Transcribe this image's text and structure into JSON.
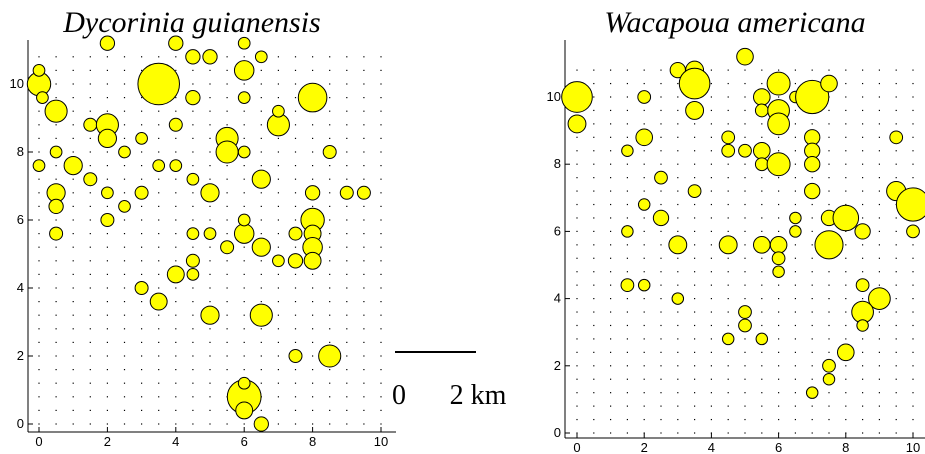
{
  "chart_data": [
    {
      "type": "scatter",
      "title": "Dycorinia guianensis",
      "xlabel": "",
      "ylabel": "",
      "xlim": [
        -0.3,
        10.7
      ],
      "ylim": [
        -0.2,
        11.5
      ],
      "xticks": [
        0,
        2,
        4,
        6,
        8,
        10
      ],
      "yticks": [
        0,
        2,
        4,
        6,
        8,
        10
      ],
      "grid": false,
      "marker_color": "#ffff00",
      "marker_edge": "#000000",
      "points": [
        {
          "x": 0,
          "y": 10,
          "s": 0.9
        },
        {
          "x": 0.5,
          "y": 9.2,
          "s": 0.85
        },
        {
          "x": 0.5,
          "y": 6.8,
          "s": 0.7
        },
        {
          "x": 0.5,
          "y": 6.4,
          "s": 0.55
        },
        {
          "x": 0.5,
          "y": 5.6,
          "s": 0.5
        },
        {
          "x": 0,
          "y": 7.6,
          "s": 0.45
        },
        {
          "x": 0.5,
          "y": 8,
          "s": 0.45
        },
        {
          "x": 1,
          "y": 7.6,
          "s": 0.7
        },
        {
          "x": 1.5,
          "y": 8.8,
          "s": 0.5
        },
        {
          "x": 2,
          "y": 8.8,
          "s": 0.85
        },
        {
          "x": 2,
          "y": 8.4,
          "s": 0.7
        },
        {
          "x": 2,
          "y": 6,
          "s": 0.5
        },
        {
          "x": 2,
          "y": 6.8,
          "s": 0.45
        },
        {
          "x": 2,
          "y": 11.2,
          "s": 0.55
        },
        {
          "x": 2.5,
          "y": 6.4,
          "s": 0.45
        },
        {
          "x": 3.5,
          "y": 10,
          "s": 1.6
        },
        {
          "x": 4,
          "y": 11.2,
          "s": 0.55
        },
        {
          "x": 4,
          "y": 8.8,
          "s": 0.5
        },
        {
          "x": 4.5,
          "y": 9.6,
          "s": 0.55
        },
        {
          "x": 4.5,
          "y": 10.8,
          "s": 0.55
        },
        {
          "x": 5,
          "y": 10.8,
          "s": 0.55
        },
        {
          "x": 5,
          "y": 6.8,
          "s": 0.7
        },
        {
          "x": 5.5,
          "y": 8.4,
          "s": 0.85
        },
        {
          "x": 5.5,
          "y": 8,
          "s": 0.85
        },
        {
          "x": 6,
          "y": 10.4,
          "s": 0.75
        },
        {
          "x": 6,
          "y": 9.6,
          "s": 0.45
        },
        {
          "x": 6,
          "y": 5.6,
          "s": 0.75
        },
        {
          "x": 6.5,
          "y": 7.2,
          "s": 0.7
        },
        {
          "x": 6.5,
          "y": 5.2,
          "s": 0.7
        },
        {
          "x": 7,
          "y": 8.8,
          "s": 0.85
        },
        {
          "x": 7,
          "y": 9.2,
          "s": 0.45
        },
        {
          "x": 8,
          "y": 9.6,
          "s": 1.1
        },
        {
          "x": 8,
          "y": 6,
          "s": 0.9
        },
        {
          "x": 8,
          "y": 5.6,
          "s": 0.65
        },
        {
          "x": 8,
          "y": 5.2,
          "s": 0.75
        },
        {
          "x": 8,
          "y": 4.8,
          "s": 0.65
        },
        {
          "x": 8,
          "y": 6.8,
          "s": 0.55
        },
        {
          "x": 9,
          "y": 6.8,
          "s": 0.5
        },
        {
          "x": 9.5,
          "y": 6.8,
          "s": 0.5
        },
        {
          "x": 7.5,
          "y": 5.6,
          "s": 0.5
        },
        {
          "x": 7.5,
          "y": 4.8,
          "s": 0.55
        },
        {
          "x": 7,
          "y": 4.8,
          "s": 0.45
        },
        {
          "x": 4,
          "y": 4.4,
          "s": 0.65
        },
        {
          "x": 3.5,
          "y": 3.6,
          "s": 0.65
        },
        {
          "x": 3,
          "y": 4,
          "s": 0.5
        },
        {
          "x": 4.5,
          "y": 4.8,
          "s": 0.5
        },
        {
          "x": 4.5,
          "y": 4.4,
          "s": 0.45
        },
        {
          "x": 5,
          "y": 3.2,
          "s": 0.7
        },
        {
          "x": 4.5,
          "y": 5.6,
          "s": 0.45
        },
        {
          "x": 5,
          "y": 5.6,
          "s": 0.45
        },
        {
          "x": 6.5,
          "y": 3.2,
          "s": 0.85
        },
        {
          "x": 7.5,
          "y": 2,
          "s": 0.5
        },
        {
          "x": 8.5,
          "y": 2,
          "s": 0.85
        },
        {
          "x": 6,
          "y": 0.8,
          "s": 1.3
        },
        {
          "x": 6,
          "y": 0.4,
          "s": 0.65
        },
        {
          "x": 6.5,
          "y": 0,
          "s": 0.55
        },
        {
          "x": 6,
          "y": 1.2,
          "s": 0.45
        },
        {
          "x": 3,
          "y": 6.8,
          "s": 0.5
        },
        {
          "x": 3.5,
          "y": 7.6,
          "s": 0.45
        },
        {
          "x": 2.5,
          "y": 8,
          "s": 0.45
        },
        {
          "x": 4,
          "y": 7.6,
          "s": 0.45
        },
        {
          "x": 4.5,
          "y": 7.2,
          "s": 0.45
        },
        {
          "x": 3,
          "y": 8.4,
          "s": 0.45
        },
        {
          "x": 5.5,
          "y": 5.2,
          "s": 0.5
        },
        {
          "x": 8.5,
          "y": 8,
          "s": 0.5
        },
        {
          "x": 0,
          "y": 10.4,
          "s": 0.45
        },
        {
          "x": 0.1,
          "y": 9.6,
          "s": 0.45
        },
        {
          "x": 1.5,
          "y": 7.2,
          "s": 0.5
        },
        {
          "x": 6,
          "y": 11.2,
          "s": 0.45
        },
        {
          "x": 6,
          "y": 8,
          "s": 0.45
        },
        {
          "x": 6.5,
          "y": 10.8,
          "s": 0.45
        },
        {
          "x": 6,
          "y": 6,
          "s": 0.45
        }
      ],
      "annotations": {
        "scale_bar_left": "0",
        "scale_bar_right": "2 km"
      }
    },
    {
      "type": "scatter",
      "title": "Wacapoua americana",
      "xlabel": "",
      "ylabel": "",
      "xlim": [
        -0.3,
        10.3
      ],
      "ylim": [
        -0.1,
        11.5
      ],
      "xticks": [
        0,
        2,
        4,
        6,
        8,
        10
      ],
      "yticks": [
        0,
        2,
        4,
        6,
        8,
        10
      ],
      "grid": false,
      "marker_color": "#ffff00",
      "marker_edge": "#000000",
      "points": [
        {
          "x": 0,
          "y": 10,
          "s": 1.2
        },
        {
          "x": 0,
          "y": 9.2,
          "s": 0.7
        },
        {
          "x": 2,
          "y": 10,
          "s": 0.5
        },
        {
          "x": 2,
          "y": 8.8,
          "s": 0.65
        },
        {
          "x": 1.5,
          "y": 8.4,
          "s": 0.45
        },
        {
          "x": 3,
          "y": 10.8,
          "s": 0.6
        },
        {
          "x": 3.5,
          "y": 10.8,
          "s": 0.7
        },
        {
          "x": 3.5,
          "y": 10.4,
          "s": 1.2
        },
        {
          "x": 3.5,
          "y": 9.6,
          "s": 0.7
        },
        {
          "x": 3.5,
          "y": 7.2,
          "s": 0.5
        },
        {
          "x": 5,
          "y": 11.2,
          "s": 0.65
        },
        {
          "x": 4.5,
          "y": 8.8,
          "s": 0.5
        },
        {
          "x": 4.5,
          "y": 8.4,
          "s": 0.5
        },
        {
          "x": 5,
          "y": 8.4,
          "s": 0.5
        },
        {
          "x": 5.5,
          "y": 8.4,
          "s": 0.65
        },
        {
          "x": 5.5,
          "y": 8,
          "s": 0.5
        },
        {
          "x": 5.5,
          "y": 10,
          "s": 0.65
        },
        {
          "x": 5.5,
          "y": 9.6,
          "s": 0.5
        },
        {
          "x": 6,
          "y": 10.4,
          "s": 0.9
        },
        {
          "x": 6,
          "y": 9.6,
          "s": 0.85
        },
        {
          "x": 6,
          "y": 9.2,
          "s": 0.85
        },
        {
          "x": 6,
          "y": 8,
          "s": 0.9
        },
        {
          "x": 6.5,
          "y": 10,
          "s": 0.45
        },
        {
          "x": 7,
          "y": 10,
          "s": 1.3
        },
        {
          "x": 7.5,
          "y": 10.4,
          "s": 0.65
        },
        {
          "x": 7,
          "y": 8.8,
          "s": 0.6
        },
        {
          "x": 7,
          "y": 8.4,
          "s": 0.6
        },
        {
          "x": 7,
          "y": 8,
          "s": 0.6
        },
        {
          "x": 7,
          "y": 7.2,
          "s": 0.6
        },
        {
          "x": 7.5,
          "y": 6.4,
          "s": 0.6
        },
        {
          "x": 7.5,
          "y": 5.6,
          "s": 1.1
        },
        {
          "x": 8,
          "y": 6.4,
          "s": 1.0
        },
        {
          "x": 8.5,
          "y": 6,
          "s": 0.6
        },
        {
          "x": 9.5,
          "y": 7.2,
          "s": 0.75
        },
        {
          "x": 10,
          "y": 6.8,
          "s": 1.3
        },
        {
          "x": 10,
          "y": 6,
          "s": 0.5
        },
        {
          "x": 9.5,
          "y": 8.8,
          "s": 0.5
        },
        {
          "x": 9,
          "y": 4,
          "s": 0.85
        },
        {
          "x": 8.5,
          "y": 3.6,
          "s": 0.85
        },
        {
          "x": 8,
          "y": 2.4,
          "s": 0.65
        },
        {
          "x": 2.5,
          "y": 7.6,
          "s": 0.5
        },
        {
          "x": 2.5,
          "y": 6.4,
          "s": 0.6
        },
        {
          "x": 3,
          "y": 5.6,
          "s": 0.7
        },
        {
          "x": 4.5,
          "y": 5.6,
          "s": 0.7
        },
        {
          "x": 5.5,
          "y": 5.6,
          "s": 0.65
        },
        {
          "x": 6,
          "y": 5.6,
          "s": 0.65
        },
        {
          "x": 6,
          "y": 5.2,
          "s": 0.5
        },
        {
          "x": 6,
          "y": 4.8,
          "s": 0.45
        },
        {
          "x": 5,
          "y": 3.6,
          "s": 0.5
        },
        {
          "x": 5,
          "y": 3.2,
          "s": 0.5
        },
        {
          "x": 4.5,
          "y": 2.8,
          "s": 0.45
        },
        {
          "x": 7.5,
          "y": 1.6,
          "s": 0.45
        },
        {
          "x": 7.5,
          "y": 2,
          "s": 0.5
        },
        {
          "x": 7,
          "y": 1.2,
          "s": 0.45
        },
        {
          "x": 5.5,
          "y": 2.8,
          "s": 0.45
        },
        {
          "x": 8.5,
          "y": 3.2,
          "s": 0.45
        },
        {
          "x": 1.5,
          "y": 4.4,
          "s": 0.5
        },
        {
          "x": 2,
          "y": 4.4,
          "s": 0.45
        },
        {
          "x": 3,
          "y": 4,
          "s": 0.45
        },
        {
          "x": 1.5,
          "y": 6,
          "s": 0.45
        },
        {
          "x": 2,
          "y": 6.8,
          "s": 0.45
        },
        {
          "x": 6.5,
          "y": 6.4,
          "s": 0.45
        },
        {
          "x": 6.5,
          "y": 6,
          "s": 0.45
        },
        {
          "x": 8.5,
          "y": 4.4,
          "s": 0.5
        }
      ]
    }
  ]
}
